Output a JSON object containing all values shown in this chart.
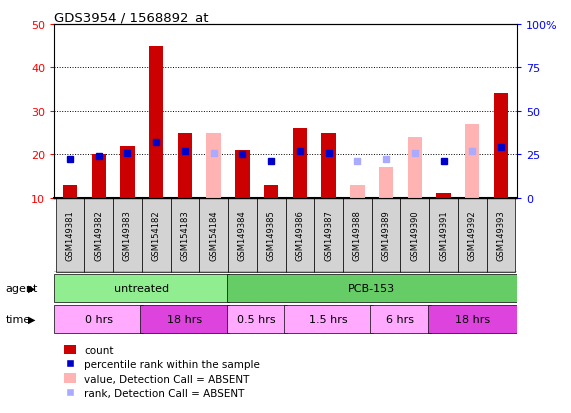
{
  "title": "GDS3954 / 1568892_at",
  "samples": [
    "GSM149381",
    "GSM149382",
    "GSM149383",
    "GSM154182",
    "GSM154183",
    "GSM154184",
    "GSM149384",
    "GSM149385",
    "GSM149386",
    "GSM149387",
    "GSM149388",
    "GSM149389",
    "GSM149390",
    "GSM149391",
    "GSM149392",
    "GSM149393"
  ],
  "count_values": [
    13,
    20,
    22,
    45,
    25,
    null,
    21,
    13,
    26,
    25,
    null,
    null,
    null,
    11,
    null,
    34
  ],
  "count_absent": [
    null,
    null,
    null,
    null,
    null,
    25,
    null,
    null,
    null,
    null,
    13,
    17,
    24,
    null,
    27,
    null
  ],
  "rank_present": [
    22,
    24,
    26,
    32,
    27,
    null,
    25,
    21,
    27,
    26,
    null,
    null,
    null,
    21,
    null,
    29
  ],
  "rank_absent": [
    null,
    null,
    null,
    null,
    null,
    26,
    null,
    null,
    null,
    null,
    21,
    22,
    26,
    null,
    27,
    null
  ],
  "ylim_left": [
    10,
    50
  ],
  "ylim_right": [
    0,
    100
  ],
  "yticks_left": [
    10,
    20,
    30,
    40,
    50
  ],
  "yticks_right": [
    0,
    25,
    50,
    75,
    100
  ],
  "ytick_labels_right": [
    "0",
    "25",
    "50",
    "75",
    "100%"
  ],
  "ytick_labels_left": [
    "10",
    "20",
    "30",
    "40",
    "50"
  ],
  "agent_groups": [
    {
      "label": "untreated",
      "start": 0,
      "end": 6,
      "color": "#90ee90"
    },
    {
      "label": "PCB-153",
      "start": 6,
      "end": 16,
      "color": "#66cc66"
    }
  ],
  "time_groups": [
    {
      "label": "0 hrs",
      "start": 0,
      "end": 3,
      "color": "#ffaaff"
    },
    {
      "label": "18 hrs",
      "start": 3,
      "end": 6,
      "color": "#dd44dd"
    },
    {
      "label": "0.5 hrs",
      "start": 6,
      "end": 8,
      "color": "#ffaaff"
    },
    {
      "label": "1.5 hrs",
      "start": 8,
      "end": 11,
      "color": "#ffaaff"
    },
    {
      "label": "6 hrs",
      "start": 11,
      "end": 13,
      "color": "#ffaaff"
    },
    {
      "label": "18 hrs",
      "start": 13,
      "end": 16,
      "color": "#dd44dd"
    }
  ],
  "bar_color_present": "#cc0000",
  "bar_color_absent": "#ffb3b3",
  "rank_color_present": "#0000cc",
  "rank_color_absent": "#aaaaff",
  "sample_bg": "#d3d3d3",
  "agent_label_color": "#000000",
  "time_label_color": "#000000"
}
